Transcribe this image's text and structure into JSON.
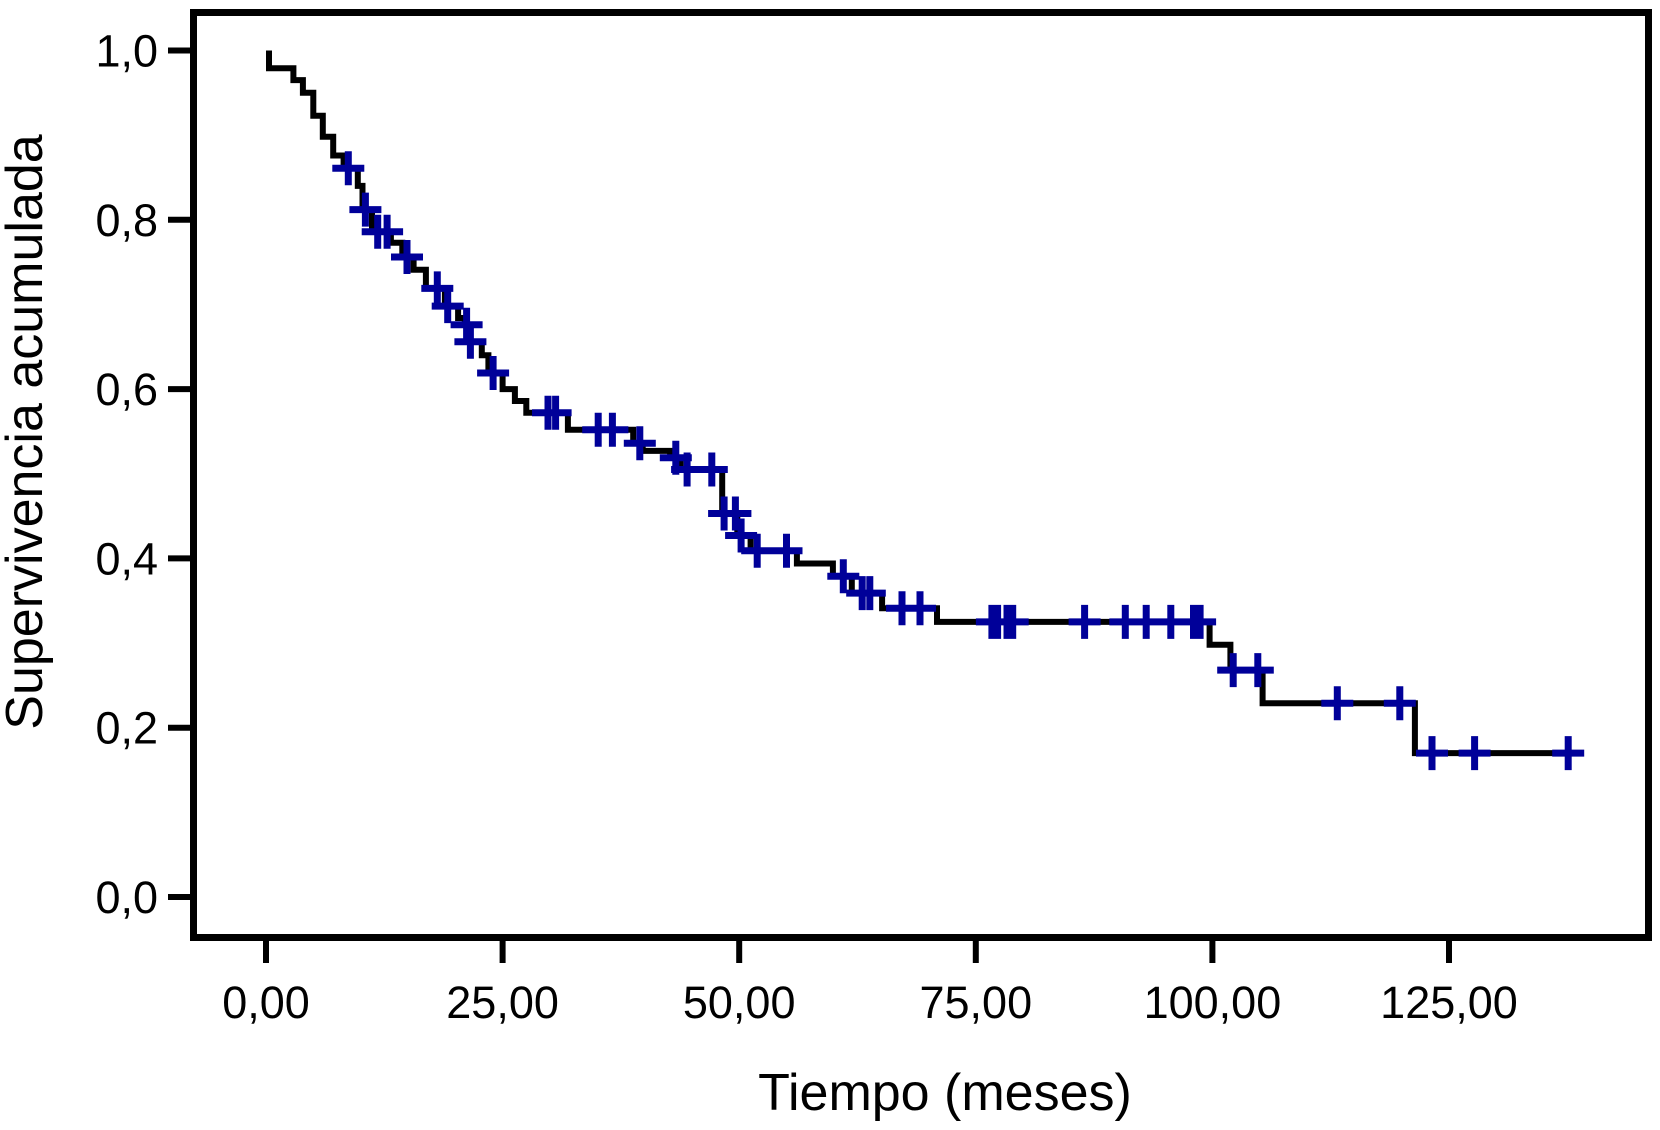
{
  "chart_data": {
    "type": "line",
    "subtype": "kaplan-meier-step-function",
    "title": "",
    "xlabel": "Tiempo (meses)",
    "ylabel": "Supervivencia acumulada",
    "xlim": [
      -8,
      146.5
    ],
    "ylim": [
      -0.052,
      1.049
    ],
    "grid": false,
    "legend": false,
    "x_ticks": [
      {
        "value": 0,
        "label": "0,00"
      },
      {
        "value": 25,
        "label": "25,00"
      },
      {
        "value": 50,
        "label": "50,00"
      },
      {
        "value": 75,
        "label": "75,00"
      },
      {
        "value": 100,
        "label": "100,00"
      },
      {
        "value": 125,
        "label": "125,00"
      }
    ],
    "y_ticks": [
      {
        "value": 0.0,
        "label": "0,0"
      },
      {
        "value": 0.2,
        "label": "0,2"
      },
      {
        "value": 0.4,
        "label": "0,4"
      },
      {
        "value": 0.6,
        "label": "0,6"
      },
      {
        "value": 0.8,
        "label": "0,8"
      },
      {
        "value": 1.0,
        "label": "1,0"
      }
    ],
    "series": [
      {
        "name": "Supervivencia acumulada",
        "color": "#000000",
        "start": {
          "t": 0.32,
          "s": 1.0
        },
        "end_t": 138.9,
        "steps": [
          [
            0.32,
            0.979
          ],
          [
            2.9,
            0.965
          ],
          [
            3.9,
            0.95
          ],
          [
            5.0,
            0.923
          ],
          [
            6.0,
            0.898
          ],
          [
            7.1,
            0.876
          ],
          [
            8.2,
            0.861
          ],
          [
            9.7,
            0.84
          ],
          [
            10.2,
            0.812
          ],
          [
            11.2,
            0.786
          ],
          [
            13.2,
            0.773
          ],
          [
            14.4,
            0.756
          ],
          [
            15.6,
            0.741
          ],
          [
            16.9,
            0.719
          ],
          [
            18.9,
            0.698
          ],
          [
            20.3,
            0.684
          ],
          [
            21.0,
            0.676
          ],
          [
            21.4,
            0.656
          ],
          [
            22.8,
            0.64
          ],
          [
            23.5,
            0.619
          ],
          [
            25.0,
            0.6
          ],
          [
            26.3,
            0.586
          ],
          [
            27.5,
            0.572
          ],
          [
            31.9,
            0.552
          ],
          [
            38.8,
            0.536
          ],
          [
            39.8,
            0.527
          ],
          [
            42.7,
            0.519
          ],
          [
            43.8,
            0.505
          ],
          [
            48.2,
            0.453
          ],
          [
            49.8,
            0.427
          ],
          [
            51.2,
            0.409
          ],
          [
            56.1,
            0.394
          ],
          [
            59.9,
            0.379
          ],
          [
            61.9,
            0.359
          ],
          [
            65.1,
            0.341
          ],
          [
            70.9,
            0.325
          ],
          [
            99.7,
            0.298
          ],
          [
            101.9,
            0.268
          ],
          [
            105.3,
            0.229
          ],
          [
            121.4,
            0.17
          ]
        ]
      }
    ],
    "censor_marks": {
      "symbol": "plus",
      "color": "#000099",
      "points": [
        [
          8.7,
          0.861
        ],
        [
          10.5,
          0.812
        ],
        [
          11.8,
          0.786
        ],
        [
          12.8,
          0.786
        ],
        [
          14.9,
          0.756
        ],
        [
          18.1,
          0.719
        ],
        [
          19.2,
          0.698
        ],
        [
          21.2,
          0.676
        ],
        [
          21.6,
          0.656
        ],
        [
          24.0,
          0.619
        ],
        [
          29.8,
          0.572
        ],
        [
          30.6,
          0.572
        ],
        [
          35.1,
          0.552
        ],
        [
          36.6,
          0.552
        ],
        [
          39.5,
          0.536
        ],
        [
          43.3,
          0.519
        ],
        [
          44.5,
          0.505
        ],
        [
          47.1,
          0.505
        ],
        [
          48.4,
          0.453
        ],
        [
          49.6,
          0.453
        ],
        [
          50.2,
          0.427
        ],
        [
          51.9,
          0.409
        ],
        [
          55.0,
          0.409
        ],
        [
          61.0,
          0.379
        ],
        [
          63.0,
          0.359
        ],
        [
          63.8,
          0.359
        ],
        [
          67.2,
          0.341
        ],
        [
          69.1,
          0.341
        ],
        [
          76.7,
          0.325
        ],
        [
          77.3,
          0.325
        ],
        [
          78.3,
          0.325
        ],
        [
          78.9,
          0.325
        ],
        [
          86.5,
          0.325
        ],
        [
          90.8,
          0.325
        ],
        [
          93.0,
          0.325
        ],
        [
          95.6,
          0.325
        ],
        [
          98.0,
          0.325
        ],
        [
          98.7,
          0.325
        ],
        [
          102.2,
          0.268
        ],
        [
          104.8,
          0.268
        ],
        [
          113.2,
          0.229
        ],
        [
          119.8,
          0.229
        ],
        [
          123.2,
          0.17
        ],
        [
          127.7,
          0.17
        ],
        [
          137.6,
          0.17
        ]
      ]
    }
  }
}
